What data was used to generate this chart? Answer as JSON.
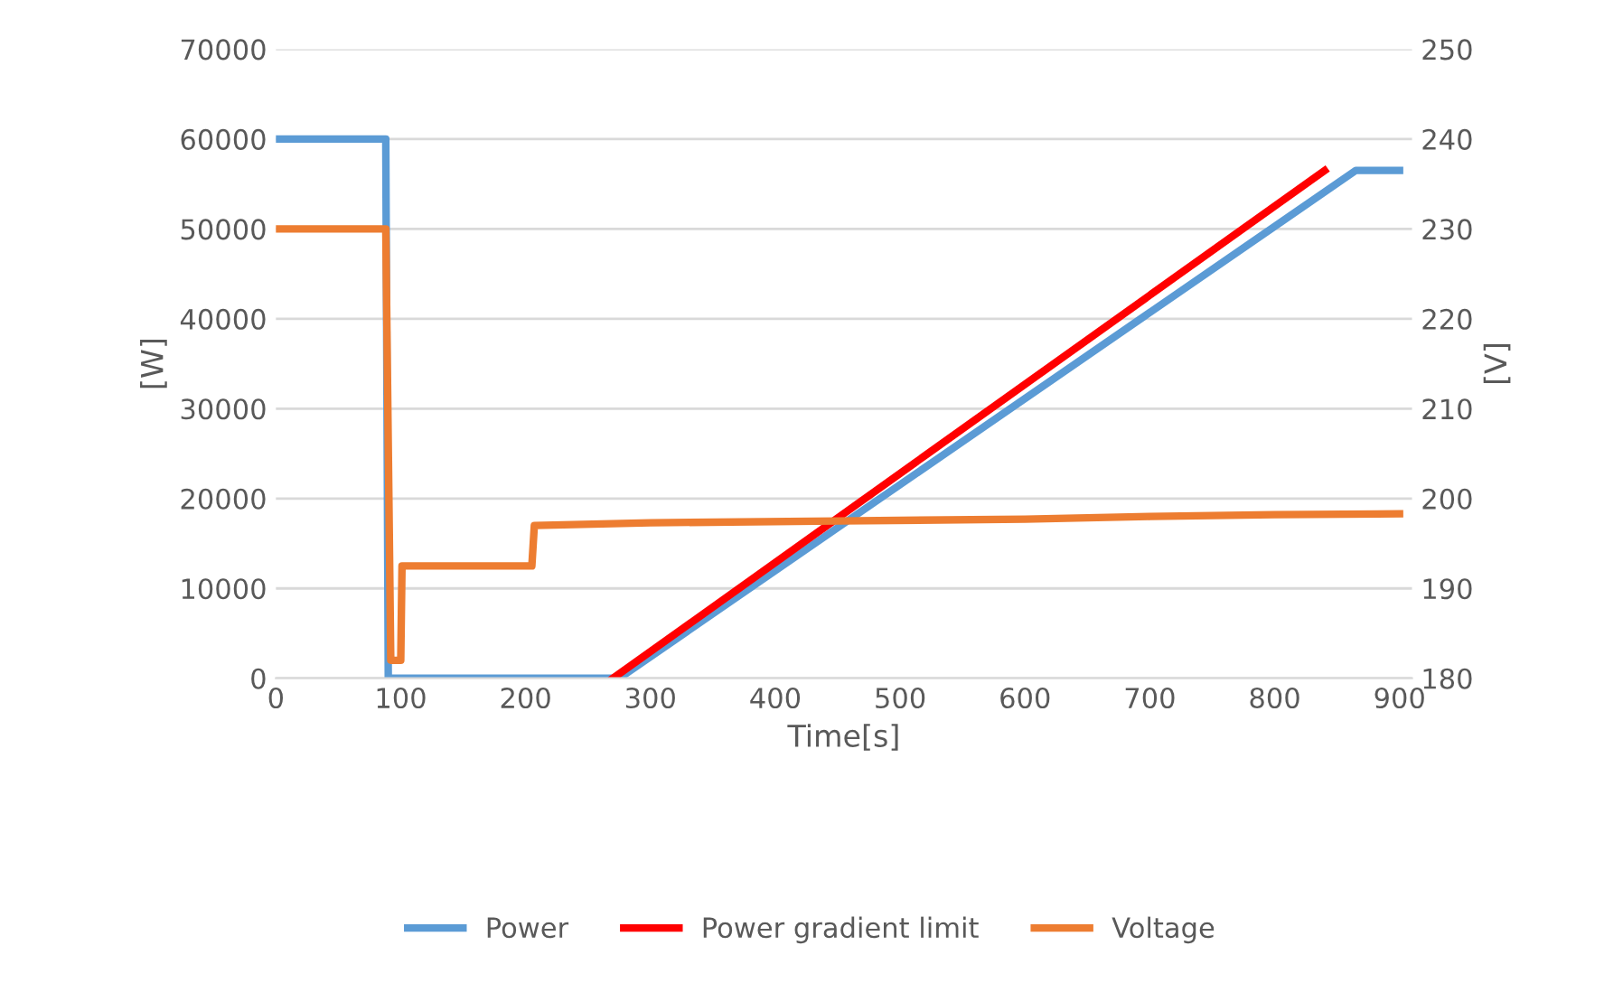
{
  "chart_data": {
    "type": "line",
    "xlabel": "Time[s]",
    "ylabel": "[W]",
    "y2label": "[V]",
    "xlim": [
      0,
      910
    ],
    "xticks": [
      0,
      100,
      200,
      300,
      400,
      500,
      600,
      700,
      800,
      900
    ],
    "ylim": [
      0,
      70000
    ],
    "yticks": [
      0,
      10000,
      20000,
      30000,
      40000,
      50000,
      60000,
      70000
    ],
    "y2lim": [
      180,
      250
    ],
    "y2ticks": [
      180,
      190,
      200,
      210,
      220,
      230,
      240,
      250
    ],
    "grid": "y",
    "legend": "bottom",
    "marker": "none",
    "line_style": "solid",
    "series": [
      {
        "name": "Power",
        "color": "#5b9bd5",
        "x": [
          0,
          88,
          90,
          275,
          865,
          900
        ],
        "values": [
          60000,
          60000,
          0,
          0,
          56500,
          56500
        ]
      },
      {
        "name": "Power gradient limit",
        "color": "#ff0000",
        "x": [
          270,
          840
        ],
        "values": [
          0,
          56500
        ]
      },
      {
        "name": "Voltage",
        "color": "#ed7d31",
        "axis": "y2",
        "x": [
          0,
          88,
          92,
          100,
          101,
          205,
          207,
          300,
          450,
          600,
          700,
          800,
          900
        ],
        "values": [
          230,
          230,
          182,
          182,
          192.5,
          192.5,
          197,
          197.3,
          197.5,
          197.7,
          198,
          198.2,
          198.3
        ]
      }
    ]
  }
}
